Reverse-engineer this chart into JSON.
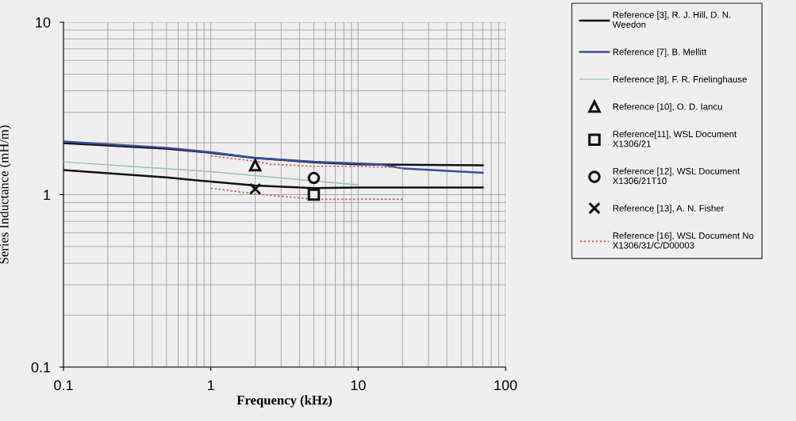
{
  "chart_data": {
    "type": "line",
    "xlabel": "Frequency (kHz)",
    "ylabel": "Series Inductance (mH/m)",
    "log": "xy",
    "xlim": [
      0.1,
      100
    ],
    "ylim": [
      0.1,
      10
    ],
    "xticks": [
      0.1,
      1,
      10,
      100
    ],
    "yticks": [
      0.1,
      1,
      10
    ],
    "grid": true,
    "legend": "right",
    "series": [
      {
        "name": "Reference [3], R. J. Hill, D. N.\nWeedon",
        "color": "#111111",
        "line_style": "solid",
        "x": [
          0.1,
          0.5,
          1,
          2,
          5,
          10,
          70
        ],
        "values": [
          1.99,
          1.85,
          1.75,
          1.63,
          1.54,
          1.5,
          1.48
        ]
      },
      {
        "name": "Reference [7], B. Mellitt",
        "color": "#3a4f9a",
        "line_style": "solid",
        "x": [
          0.1,
          0.5,
          1,
          2,
          5,
          14,
          20,
          70
        ],
        "values": [
          2.03,
          1.87,
          1.76,
          1.63,
          1.55,
          1.5,
          1.42,
          1.34
        ]
      },
      {
        "name": "Reference [8], F. R. Frielinghause",
        "color": "#8fc4b4",
        "line_style": "solid",
        "x": [
          0.1,
          0.41,
          1,
          2,
          5,
          10
        ],
        "values": [
          1.55,
          1.43,
          1.36,
          1.29,
          1.2,
          1.14
        ]
      },
      {
        "name": "Reference [10], O. D. Iancu",
        "color": "#111111",
        "type": "scatter",
        "marker": "triangle",
        "x": [
          2
        ],
        "values": [
          1.48
        ]
      },
      {
        "name": "Reference[11], WSL Document\nX1306/21",
        "color": "#111111",
        "type": "scatter",
        "marker": "square",
        "x": [
          5
        ],
        "values": [
          1.0
        ]
      },
      {
        "name": "Reference [12], WSL Document\nX1306/21T10",
        "color": "#111111",
        "type": "scatter",
        "marker": "circle",
        "x": [
          5
        ],
        "values": [
          1.25
        ]
      },
      {
        "name": "Reference [13], A. N. Fisher",
        "color": "#111111",
        "type": "scatter",
        "marker": "cross",
        "x": [
          2
        ],
        "values": [
          1.08
        ]
      },
      {
        "name": "Reference [16], WSL Document No\nX1306/31/C/D00003",
        "color": "#d0606a",
        "line_style": "dotted",
        "x": [
          1,
          2,
          2.57,
          5,
          10,
          20
        ],
        "values": [
          1.68,
          1.56,
          1.5,
          1.46,
          1.46,
          1.43
        ]
      },
      {
        "color": "#111111",
        "line_style": "solid",
        "x": [
          0.1,
          0.5,
          1,
          2,
          5,
          10,
          70
        ],
        "values": [
          1.39,
          1.26,
          1.19,
          1.13,
          1.09,
          1.1,
          1.1
        ]
      },
      {
        "color": "#d0606a",
        "line_style": "dotted",
        "x": [
          1,
          2,
          5,
          10,
          20
        ],
        "values": [
          1.09,
          1.01,
          0.94,
          0.94,
          0.94
        ]
      }
    ]
  }
}
